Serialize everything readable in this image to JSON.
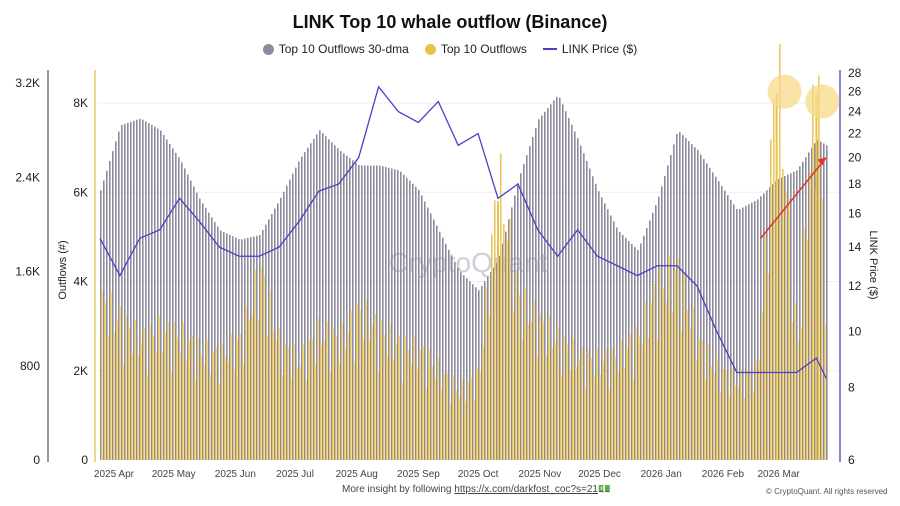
{
  "chart_data": {
    "type": "bar",
    "title": "LINK Top 10 whale outflow (Binance)",
    "legend": [
      "Top 10 Outflows 30-dma",
      "Top 10 Outflows",
      "LINK Price ($)"
    ],
    "legend_position": "top",
    "colors": {
      "dma": "#8e8c9c",
      "outflows": "#e9c24e",
      "price": "#4a3fc8",
      "annotation_circle": "#f7d98a",
      "arrow": "#e0342a"
    },
    "y_left_outer": {
      "ticks": [
        "0",
        "800",
        "1.6K",
        "2.4K",
        "3.2K"
      ],
      "range": [
        0,
        3200
      ],
      "series": "Top 10 Outflows 30-dma"
    },
    "y_left_inner": {
      "label": "Outflows (#)",
      "ticks": [
        "0",
        "2K",
        "4K",
        "6K",
        "8K"
      ],
      "range": [
        0,
        8000
      ],
      "series": "Top 10 Outflows"
    },
    "y_right": {
      "label": "LINK Price ($)",
      "scale": "log",
      "ticks": [
        "6",
        "8",
        "10",
        "12",
        "14",
        "16",
        "18",
        "20",
        "22",
        "24",
        "26",
        "28"
      ],
      "range": [
        6,
        28
      ]
    },
    "x_ticks": [
      "2025 Apr",
      "2025 May",
      "2025 Jun",
      "2025 Jul",
      "2025 Aug",
      "2025 Sep",
      "2025 Oct",
      "2025 Nov",
      "2025 Dec",
      "2026 Jan",
      "2026 Feb",
      "2026 Mar"
    ],
    "x_tick_dates": [
      "2025-04-01",
      "2025-05-01",
      "2025-06-01",
      "2025-07-01",
      "2025-08-01",
      "2025-09-01",
      "2025-10-01",
      "2025-11-01",
      "2025-12-01",
      "2026-01-01",
      "2026-02-01",
      "2026-03-01"
    ],
    "x": [
      "2025-03-28",
      "2025-04-07",
      "2025-04-17",
      "2025-04-27",
      "2025-05-07",
      "2025-05-17",
      "2025-05-27",
      "2025-06-06",
      "2025-06-16",
      "2025-06-26",
      "2025-07-06",
      "2025-07-16",
      "2025-07-26",
      "2025-08-05",
      "2025-08-15",
      "2025-08-25",
      "2025-09-04",
      "2025-09-14",
      "2025-09-24",
      "2025-10-04",
      "2025-10-14",
      "2025-10-24",
      "2025-11-03",
      "2025-11-13",
      "2025-11-23",
      "2025-12-03",
      "2025-12-13",
      "2025-12-23",
      "2026-01-02",
      "2026-01-12",
      "2026-01-22",
      "2026-02-01",
      "2026-02-11",
      "2026-02-21",
      "2026-03-03",
      "2026-03-13",
      "2026-03-23",
      "2026-03-28"
    ],
    "series": [
      {
        "name": "Top 10 Outflows 30-dma",
        "axis": "left_outer",
        "values": [
          2290,
          2840,
          2900,
          2800,
          2550,
          2210,
          1950,
          1870,
          1910,
          2210,
          2550,
          2800,
          2630,
          2500,
          2500,
          2460,
          2290,
          1950,
          1610,
          1440,
          1700,
          2380,
          2890,
          3100,
          2720,
          2290,
          1950,
          1780,
          2210,
          2800,
          2630,
          2380,
          2120,
          2210,
          2380,
          2460,
          2720,
          2670
        ]
      },
      {
        "name": "Top 10 Outflows",
        "axis": "left_inner",
        "values": [
          3200,
          2800,
          2400,
          2600,
          2500,
          2200,
          2100,
          2400,
          3800,
          2300,
          2000,
          2600,
          2400,
          3000,
          2600,
          2300,
          2200,
          1800,
          1400,
          1700,
          5800,
          3200,
          2800,
          2400,
          2100,
          2000,
          2100,
          2500,
          3500,
          3800,
          2400,
          1800,
          1600,
          1800,
          8200,
          2200,
          8200,
          1800
        ]
      },
      {
        "name": "LINK Price ($)",
        "axis": "right",
        "values": [
          14.5,
          12.5,
          14.5,
          15,
          17,
          15.5,
          14,
          13.5,
          13.5,
          14,
          15.5,
          17.5,
          18,
          20,
          26.5,
          24,
          23,
          25,
          21,
          22,
          17,
          18,
          15,
          13.5,
          15,
          13.5,
          13,
          12.5,
          13,
          13,
          12,
          10,
          8.5,
          8.5,
          8.5,
          8.5,
          9,
          8.3
        ]
      }
    ],
    "annotations": [
      {
        "type": "circle",
        "date": "2026-03-07",
        "value": 26
      },
      {
        "type": "circle",
        "date": "2026-03-26",
        "value": 25
      },
      {
        "type": "arrow",
        "from": {
          "date": "2026-02-23",
          "value": 14.5
        },
        "to": {
          "date": "2026-03-28",
          "value": 20
        }
      }
    ],
    "watermark": "CryptoQuant",
    "grid": true
  },
  "footer": {
    "text": "More insight by following",
    "link": "https://x.com/darkfost_coc?s=21",
    "emoji": "💵",
    "copyright": "© CryptoQuant. All rights reserved"
  }
}
